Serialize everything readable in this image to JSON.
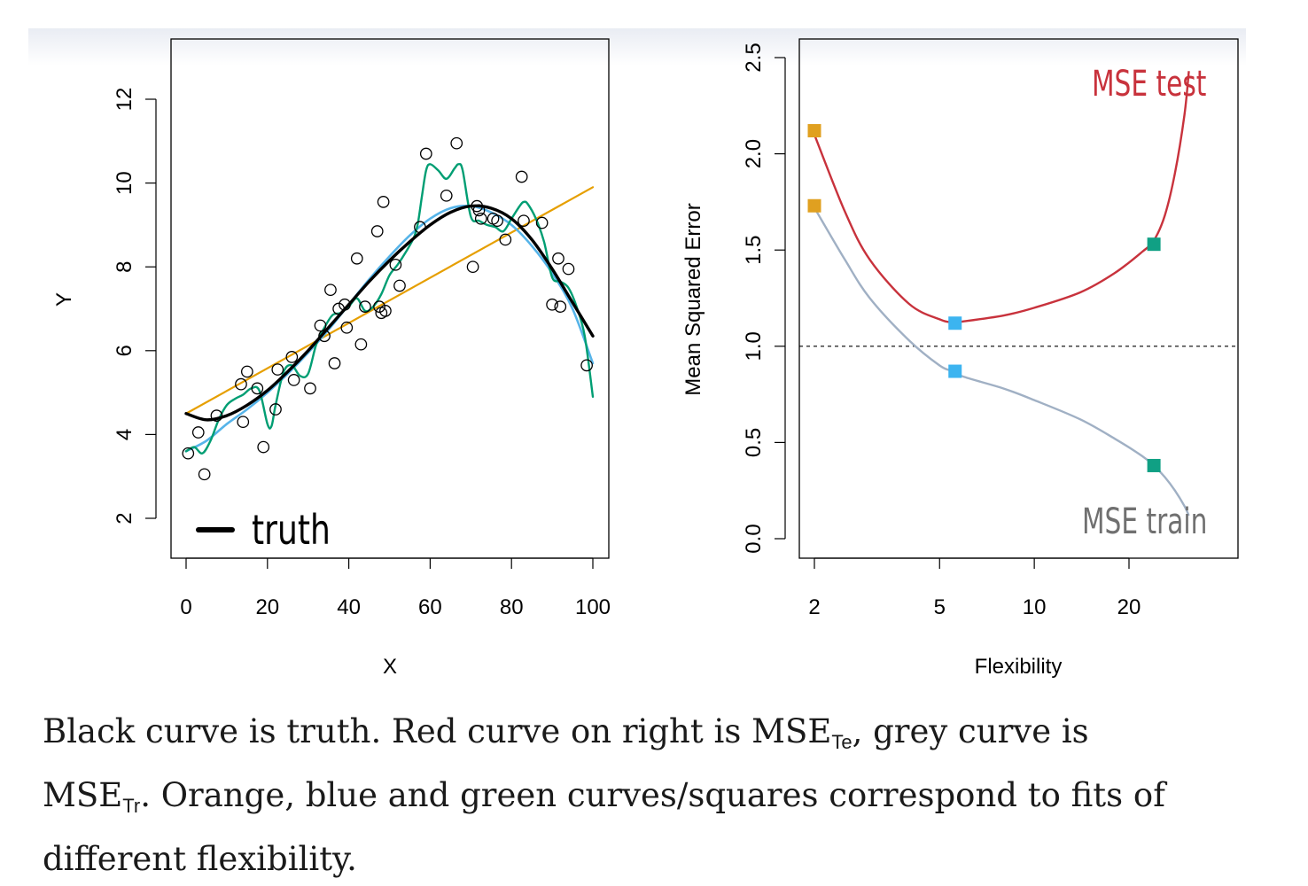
{
  "chart_data": [
    {
      "type": "scatter",
      "xlabel": "X",
      "ylabel": "Y",
      "xlim": [
        0,
        100
      ],
      "ylim": [
        1,
        13.4
      ],
      "xticks": [
        0,
        20,
        40,
        60,
        80,
        100
      ],
      "yticks": [
        2,
        4,
        6,
        8,
        10,
        12
      ],
      "grid": false,
      "legend": {
        "label": "truth",
        "placement": "bottom-left"
      },
      "colors": {
        "truth": "#000000",
        "linear": "#E69F00",
        "smooth": "#56B4E9",
        "wiggly": "#009E73",
        "points": "#000000"
      },
      "points": [
        [
          0.5,
          3.55
        ],
        [
          3,
          4.05
        ],
        [
          4.5,
          3.05
        ],
        [
          7.5,
          4.45
        ],
        [
          13.5,
          5.2
        ],
        [
          14,
          4.3
        ],
        [
          15,
          5.5
        ],
        [
          17.5,
          5.1
        ],
        [
          19,
          3.7
        ],
        [
          22,
          4.6
        ],
        [
          22.5,
          5.55
        ],
        [
          26,
          5.85
        ],
        [
          26.5,
          5.3
        ],
        [
          30.5,
          5.1
        ],
        [
          33,
          6.6
        ],
        [
          34,
          6.35
        ],
        [
          35.5,
          7.45
        ],
        [
          36.5,
          5.7
        ],
        [
          37.5,
          7.0
        ],
        [
          39,
          7.1
        ],
        [
          39.5,
          6.55
        ],
        [
          42,
          8.2
        ],
        [
          43,
          6.15
        ],
        [
          44,
          7.05
        ],
        [
          47,
          8.85
        ],
        [
          47.5,
          7.05
        ],
        [
          48,
          6.9
        ],
        [
          48.5,
          9.55
        ],
        [
          49,
          6.95
        ],
        [
          51.5,
          8.05
        ],
        [
          52.5,
          7.55
        ],
        [
          57.5,
          8.95
        ],
        [
          59,
          10.7
        ],
        [
          64,
          9.7
        ],
        [
          66.5,
          10.95
        ],
        [
          70.5,
          8.0
        ],
        [
          71.5,
          9.45
        ],
        [
          72,
          9.35
        ],
        [
          72.5,
          9.15
        ],
        [
          75.5,
          9.15
        ],
        [
          76.5,
          9.1
        ],
        [
          78.5,
          8.65
        ],
        [
          82.5,
          10.15
        ],
        [
          83,
          9.1
        ],
        [
          87.5,
          9.05
        ],
        [
          90,
          7.1
        ],
        [
          91.5,
          8.2
        ],
        [
          92,
          7.05
        ],
        [
          94,
          7.95
        ],
        [
          98.5,
          5.65
        ]
      ],
      "series": [
        {
          "name": "truth",
          "x": [
            0,
            5,
            10,
            15,
            20,
            25,
            30,
            35,
            40,
            45,
            50,
            55,
            60,
            65,
            70,
            75,
            80,
            85,
            90,
            95,
            100
          ],
          "y": [
            4.5,
            4.35,
            4.45,
            4.7,
            5.05,
            5.5,
            6.0,
            6.55,
            7.1,
            7.65,
            8.15,
            8.6,
            9.0,
            9.3,
            9.45,
            9.4,
            9.15,
            8.65,
            7.95,
            7.15,
            6.35
          ]
        },
        {
          "name": "linear",
          "x": [
            0,
            100
          ],
          "y": [
            4.5,
            9.9
          ]
        },
        {
          "name": "smooth",
          "x": [
            0,
            5,
            10,
            15,
            20,
            25,
            30,
            35,
            40,
            45,
            50,
            55,
            60,
            65,
            70,
            75,
            80,
            85,
            90,
            95,
            100
          ],
          "y": [
            3.6,
            3.85,
            4.25,
            4.6,
            5.0,
            5.45,
            5.95,
            6.5,
            7.1,
            7.7,
            8.25,
            8.75,
            9.15,
            9.4,
            9.45,
            9.3,
            9.0,
            8.5,
            7.85,
            7.0,
            5.7
          ]
        },
        {
          "name": "wiggly",
          "x": [
            0,
            2,
            4,
            6,
            8,
            10,
            12,
            14,
            16,
            18,
            20,
            21,
            22,
            24,
            26,
            28,
            30,
            32,
            34,
            36,
            38,
            40,
            42,
            44,
            46,
            48,
            50,
            52,
            54,
            56,
            57,
            58,
            59,
            60,
            62,
            64,
            66,
            67,
            68,
            70,
            72,
            74,
            76,
            78,
            80,
            82,
            83,
            84,
            86,
            88,
            90,
            92,
            94,
            96,
            98,
            100
          ],
          "y": [
            3.6,
            3.7,
            3.55,
            3.85,
            4.35,
            4.7,
            4.85,
            4.95,
            5.1,
            5.05,
            4.25,
            4.2,
            4.7,
            5.5,
            5.65,
            5.4,
            5.45,
            6.15,
            6.55,
            6.85,
            6.9,
            7.05,
            7.25,
            6.95,
            7.05,
            7.35,
            7.8,
            8.05,
            8.35,
            8.7,
            9.05,
            9.7,
            10.3,
            10.45,
            10.3,
            10.1,
            10.35,
            10.45,
            10.3,
            9.2,
            9.1,
            9.0,
            8.95,
            8.85,
            9.15,
            9.45,
            9.55,
            9.5,
            9.15,
            8.6,
            7.75,
            7.65,
            7.5,
            7.05,
            6.35,
            4.9
          ]
        }
      ]
    },
    {
      "type": "line",
      "xlabel": "Flexibility",
      "ylabel": "Mean Squared Error",
      "xscale": "log",
      "xlim": [
        1.97,
        32
      ],
      "ylim": [
        -0.1,
        2.6
      ],
      "xticks": [
        2,
        5,
        10,
        20
      ],
      "yticks": [
        0.0,
        0.5,
        1.0,
        1.5,
        2.0,
        2.5
      ],
      "ytick_labels": [
        "0.0",
        "0.5",
        "1.0",
        "1.5",
        "2.0",
        "2.5"
      ],
      "grid": false,
      "reference_line": {
        "y": 1.0,
        "style": "dashed"
      },
      "colors": {
        "test": "#C8323C",
        "train": "#A0B0C4",
        "orange": "#E0A020",
        "blue": "#3CB4F0",
        "green": "#10A084"
      },
      "series": [
        {
          "name": "MSE test",
          "x": [
            2,
            2.5,
            3,
            4,
            5,
            5.5,
            6,
            8,
            10,
            14,
            18,
            22,
            24,
            26,
            28,
            30,
            31
          ],
          "y": [
            2.1,
            1.7,
            1.45,
            1.22,
            1.14,
            1.125,
            1.13,
            1.16,
            1.2,
            1.28,
            1.38,
            1.49,
            1.55,
            1.68,
            1.9,
            2.2,
            2.43
          ]
        },
        {
          "name": "MSE train",
          "x": [
            2,
            2.5,
            3,
            4,
            5,
            5.5,
            6,
            8,
            10,
            14,
            18,
            22,
            24,
            26,
            28,
            30,
            31
          ],
          "y": [
            1.72,
            1.45,
            1.25,
            1.03,
            0.9,
            0.87,
            0.84,
            0.78,
            0.72,
            0.62,
            0.52,
            0.43,
            0.38,
            0.32,
            0.25,
            0.17,
            0.12
          ]
        }
      ],
      "markers": [
        {
          "x": 2,
          "y": 2.12,
          "color": "orange"
        },
        {
          "x": 2,
          "y": 1.73,
          "color": "orange"
        },
        {
          "x": 5.6,
          "y": 1.12,
          "color": "blue"
        },
        {
          "x": 5.6,
          "y": 0.87,
          "color": "blue"
        },
        {
          "x": 24,
          "y": 1.53,
          "color": "green"
        },
        {
          "x": 24,
          "y": 0.38,
          "color": "green"
        }
      ],
      "annotations": {
        "test": "MSE test",
        "train": "MSE train"
      }
    }
  ],
  "caption": {
    "line1_a": "Black curve is truth. Red curve on right is MSE",
    "line1_sub": "Te",
    "line1_b": ", grey curve is",
    "line2_a": "MSE",
    "line2_sub": "Tr",
    "line2_b": ". Orange, blue and green curves/squares correspond to fits of",
    "line3": "different flexibility."
  }
}
